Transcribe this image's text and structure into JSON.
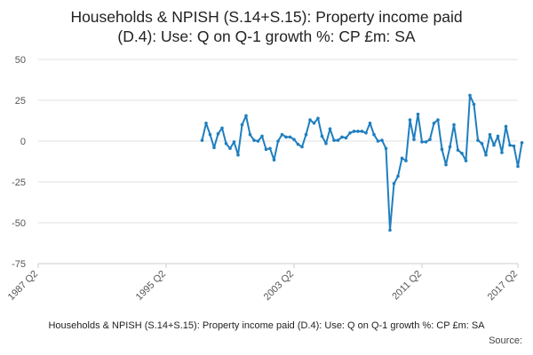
{
  "chart_data": {
    "type": "line",
    "title_line1": "Households & NPISH (S.14+S.15): Property income paid",
    "title_line2": "(D.4): Use: Q on Q-1 growth %: CP £m: SA",
    "xlabel": "",
    "ylabel": "",
    "caption": "Households & NPISH (S.14+S.15): Property income paid (D.4): Use: Q on Q-1 growth %: CP £m: SA",
    "source": "Source:",
    "ylim": [
      -75,
      50
    ],
    "yticks": [
      50,
      25,
      0,
      -25,
      -50,
      -75
    ],
    "xticks": [
      "1987 Q2",
      "1995 Q2",
      "2003 Q2",
      "2011 Q2",
      "2017 Q2"
    ],
    "series": [
      {
        "values": [
          [
            "1997 Q3",
            0.5
          ],
          [
            "1997 Q4",
            11
          ],
          [
            "1998 Q1",
            4
          ],
          [
            "1998 Q2",
            -4
          ],
          [
            "1998 Q3",
            4.5
          ],
          [
            "1998 Q4",
            8
          ],
          [
            "1999 Q1",
            -1.5
          ],
          [
            "1999 Q2",
            -4.5
          ],
          [
            "1999 Q3",
            -0.5
          ],
          [
            "1999 Q4",
            -8.5
          ],
          [
            "2000 Q1",
            10
          ],
          [
            "2000 Q2",
            15.5
          ],
          [
            "2000 Q3",
            4
          ],
          [
            "2000 Q4",
            0.5
          ],
          [
            "2001 Q1",
            0
          ],
          [
            "2001 Q2",
            3
          ],
          [
            "2001 Q3",
            -5
          ],
          [
            "2001 Q4",
            -4.5
          ],
          [
            "2002 Q1",
            -11.5
          ],
          [
            "2002 Q2",
            0
          ],
          [
            "2002 Q3",
            4
          ],
          [
            "2002 Q4",
            2.5
          ],
          [
            "2003 Q1",
            2.5
          ],
          [
            "2003 Q2",
            1
          ],
          [
            "2003 Q3",
            -2
          ],
          [
            "2003 Q4",
            -3.5
          ],
          [
            "2004 Q1",
            4
          ],
          [
            "2004 Q2",
            13
          ],
          [
            "2004 Q3",
            11
          ],
          [
            "2004 Q4",
            14
          ],
          [
            "2005 Q1",
            3
          ],
          [
            "2005 Q2",
            -1.5
          ],
          [
            "2005 Q3",
            7.5
          ],
          [
            "2005 Q4",
            0.5
          ],
          [
            "2006 Q1",
            0.5
          ],
          [
            "2006 Q2",
            2.5
          ],
          [
            "2006 Q3",
            2
          ],
          [
            "2006 Q4",
            5
          ],
          [
            "2007 Q1",
            6
          ],
          [
            "2007 Q2",
            6
          ],
          [
            "2007 Q3",
            6
          ],
          [
            "2007 Q4",
            5
          ],
          [
            "2008 Q1",
            11
          ],
          [
            "2008 Q2",
            4
          ],
          [
            "2008 Q3",
            0
          ],
          [
            "2008 Q4",
            0.5
          ],
          [
            "2009 Q1",
            -4.5
          ],
          [
            "2009 Q2",
            -54.5
          ],
          [
            "2009 Q3",
            -26
          ],
          [
            "2009 Q4",
            -21.5
          ],
          [
            "2010 Q1",
            -10.5
          ],
          [
            "2010 Q2",
            -12
          ],
          [
            "2010 Q3",
            13
          ],
          [
            "2010 Q4",
            1
          ],
          [
            "2011 Q1",
            16.5
          ],
          [
            "2011 Q2",
            -0.5
          ],
          [
            "2011 Q3",
            -0.5
          ],
          [
            "2011 Q4",
            1
          ],
          [
            "2012 Q1",
            11
          ],
          [
            "2012 Q2",
            13
          ],
          [
            "2012 Q3",
            -5
          ],
          [
            "2012 Q4",
            -14.5
          ],
          [
            "2013 Q1",
            -3.5
          ],
          [
            "2013 Q2",
            10
          ],
          [
            "2013 Q3",
            -5.5
          ],
          [
            "2013 Q4",
            -7.5
          ],
          [
            "2014 Q1",
            -12
          ],
          [
            "2014 Q2",
            28
          ],
          [
            "2014 Q3",
            22.5
          ],
          [
            "2014 Q4",
            0.5
          ],
          [
            "2015 Q1",
            -1.5
          ],
          [
            "2015 Q2",
            -8.5
          ],
          [
            "2015 Q3",
            4
          ],
          [
            "2015 Q4",
            -2.5
          ],
          [
            "2016 Q1",
            3
          ],
          [
            "2016 Q2",
            -7
          ],
          [
            "2016 Q3",
            9
          ],
          [
            "2016 Q4",
            -2.5
          ],
          [
            "2017 Q1",
            -3
          ],
          [
            "2017 Q2",
            -15.5
          ],
          [
            "2017 Q3",
            -1
          ]
        ]
      }
    ],
    "line_color": "#1f7fbf",
    "grid_color": "#e0e0e0",
    "grid": true
  }
}
